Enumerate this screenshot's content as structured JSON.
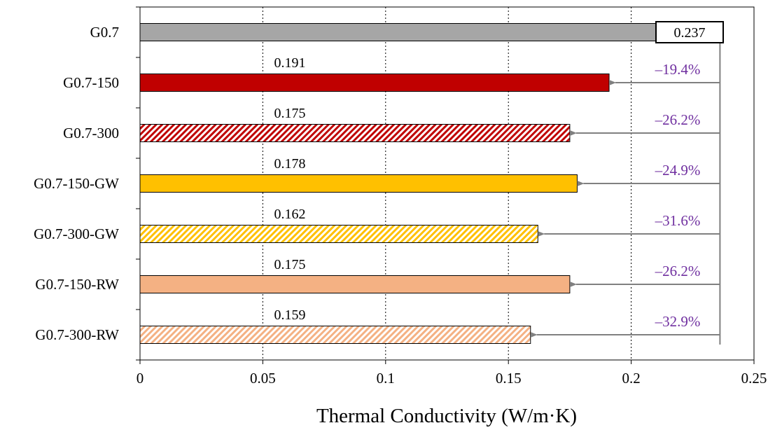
{
  "chart_data": {
    "type": "bar",
    "orientation": "horizontal",
    "categories": [
      "G0.7",
      "G0.7-150",
      "G0.7-300",
      "G0.7-150-GW",
      "G0.7-300-GW",
      "G0.7-150-RW",
      "G0.7-300-RW"
    ],
    "values": [
      0.237,
      0.191,
      0.175,
      0.178,
      0.162,
      0.175,
      0.159
    ],
    "value_labels": [
      "0.237",
      "0.191",
      "0.175",
      "0.178",
      "0.162",
      "0.175",
      "0.159"
    ],
    "reduction_labels": [
      "",
      "–19.4%",
      "–26.2%",
      "–24.9%",
      "–31.6%",
      "–26.2%",
      "–32.9%"
    ],
    "bar_colors": [
      "#a6a6a6",
      "#c00000",
      "#c00000",
      "#ffc000",
      "#ffc000",
      "#f4b183",
      "#f4b183"
    ],
    "bar_hatched": [
      false,
      false,
      true,
      false,
      true,
      false,
      true
    ],
    "xlabel": "Thermal Conductivity (W/m·K)",
    "ylabel": "",
    "xlim": [
      0,
      0.25
    ],
    "xticks": [
      0,
      0.05,
      0.1,
      0.15,
      0.2,
      0.25
    ],
    "xtick_labels": [
      "0",
      "0.05",
      "0.1",
      "0.15",
      "0.2",
      "0.25"
    ],
    "grid": "vertical dotted",
    "annotation_color": "#7030a0",
    "arrow_color": "#808080"
  }
}
